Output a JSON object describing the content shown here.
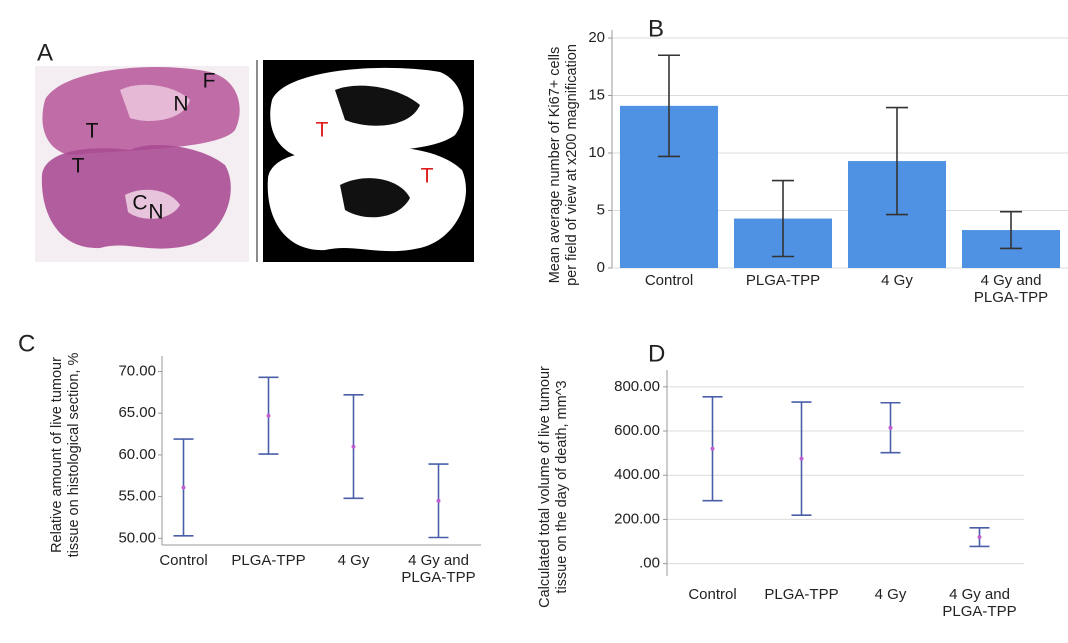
{
  "panel_a": {
    "label": "A",
    "left_image_labels": [
      "T",
      "T",
      "N",
      "F",
      "C",
      "N"
    ],
    "right_image_labels": [
      "T",
      "T"
    ]
  },
  "chart_data": [
    {
      "type": "bar",
      "panel_label": "B",
      "y_label": "Mean average number of Ki67+ cells\nper field of view at x200 magnification",
      "categories": [
        "Control",
        "PLGA-TPP",
        "4 Gy",
        "4 Gy and\nPLGA-TPP"
      ],
      "values": [
        14.1,
        4.3,
        9.3,
        3.3
      ],
      "errors": [
        4.4,
        3.3,
        4.65,
        1.6
      ],
      "color": "#4f92e3",
      "error_color": "#333333",
      "ylim": [
        0,
        20
      ],
      "yticks": [
        0,
        5,
        10,
        15,
        20
      ],
      "grid": true
    },
    {
      "type": "errorbar",
      "panel_label": "C",
      "y_label": "Relative amount of live tumour\ntissue on histological section, %",
      "categories": [
        "Control",
        "PLGA-TPP",
        "4 Gy",
        "4 Gy and\nPLGA-TPP"
      ],
      "values": [
        56.1,
        64.7,
        61.0,
        54.5
      ],
      "errors": [
        5.8,
        4.6,
        6.2,
        4.4
      ],
      "error_color": "#4a5fa8",
      "marker_color": "#c060d0",
      "ylim": [
        49.2,
        70.9
      ],
      "yticks": [
        {
          "value": 50,
          "label": "50.00"
        },
        {
          "value": 55,
          "label": "55.00"
        },
        {
          "value": 60,
          "label": "60.00"
        },
        {
          "value": 65,
          "label": "65.00"
        },
        {
          "value": 70,
          "label": "70.00"
        }
      ],
      "grid": false
    },
    {
      "type": "errorbar",
      "panel_label": "D",
      "y_label": "Calculated total volume of live tumour\ntissue on the day of death, mm^3",
      "categories": [
        "Control",
        "PLGA-TPP",
        "4 Gy",
        "4 Gy and\nPLGA-TPP"
      ],
      "values": [
        520,
        475,
        615,
        120
      ],
      "errors": [
        235,
        256,
        113,
        42
      ],
      "error_color": "#4a5fa8",
      "marker_color": "#c060d0",
      "ylim": [
        -56,
        840
      ],
      "yticks": [
        {
          "value": 0,
          "label": ".00"
        },
        {
          "value": 200,
          "label": "200.00"
        },
        {
          "value": 400,
          "label": "400.00"
        },
        {
          "value": 600,
          "label": "600.00"
        },
        {
          "value": 800,
          "label": "800.00"
        }
      ],
      "grid": true
    }
  ]
}
